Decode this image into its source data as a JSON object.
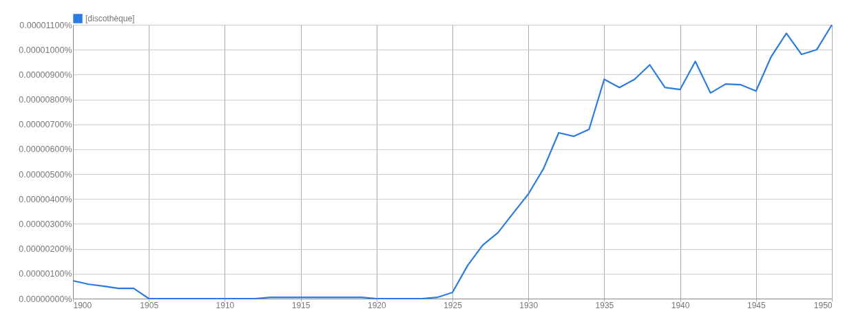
{
  "chart_data": {
    "type": "line",
    "x": [
      1900,
      1901,
      1902,
      1903,
      1904,
      1905,
      1906,
      1907,
      1908,
      1909,
      1910,
      1911,
      1912,
      1913,
      1914,
      1915,
      1916,
      1917,
      1918,
      1919,
      1920,
      1921,
      1922,
      1923,
      1924,
      1925,
      1926,
      1927,
      1928,
      1929,
      1930,
      1931,
      1932,
      1933,
      1934,
      1935,
      1936,
      1937,
      1938,
      1939,
      1940,
      1941,
      1942,
      1943,
      1944,
      1945,
      1946,
      1947,
      1948,
      1949,
      1950
    ],
    "series": [
      {
        "name": "[discothèque]",
        "color": "#2a7ae2",
        "values": [
          7.2e-07,
          5.8e-07,
          5e-07,
          4.1e-07,
          4.1e-07,
          0,
          0,
          0,
          0,
          0,
          0,
          0,
          0,
          5e-08,
          5e-08,
          5e-08,
          5e-08,
          5e-08,
          5e-08,
          5e-08,
          0,
          0,
          0,
          0,
          5e-08,
          2.5e-07,
          1.33e-06,
          2.15e-06,
          2.65e-06,
          3.43e-06,
          4.2e-06,
          5.22e-06,
          6.66e-06,
          6.52e-06,
          6.8e-06,
          8.81e-06,
          8.48e-06,
          8.81e-06,
          9.39e-06,
          8.48e-06,
          8.4e-06,
          9.53e-06,
          8.26e-06,
          8.62e-06,
          8.59e-06,
          8.34e-06,
          9.72e-06,
          1.066e-05,
          9.81e-06,
          1e-05,
          1.1e-05
        ]
      }
    ],
    "xlim": [
      1900,
      1950
    ],
    "xticks": [
      1900,
      1905,
      1910,
      1915,
      1920,
      1925,
      1930,
      1935,
      1940,
      1945,
      1950
    ],
    "ylim": [
      0,
      1.1e-05
    ],
    "yticks": [
      {
        "value": 0,
        "label": "0.00000000%"
      },
      {
        "value": 1e-06,
        "label": "0.00000100%"
      },
      {
        "value": 2e-06,
        "label": "0.00000200%"
      },
      {
        "value": 3e-06,
        "label": "0.00000300%"
      },
      {
        "value": 4e-06,
        "label": "0.00000400%"
      },
      {
        "value": 5e-06,
        "label": "0.00000500%"
      },
      {
        "value": 6e-06,
        "label": "0.00000600%"
      },
      {
        "value": 7e-06,
        "label": "0.00000700%"
      },
      {
        "value": 8e-06,
        "label": "0.00000800%"
      },
      {
        "value": 9e-06,
        "label": "0.00000900%"
      },
      {
        "value": 1e-05,
        "label": "0.00001000%"
      },
      {
        "value": 1.1e-05,
        "label": "0.00001100%"
      }
    ],
    "grid": true,
    "legend": "top",
    "marker": "none",
    "line_style": "solid"
  }
}
